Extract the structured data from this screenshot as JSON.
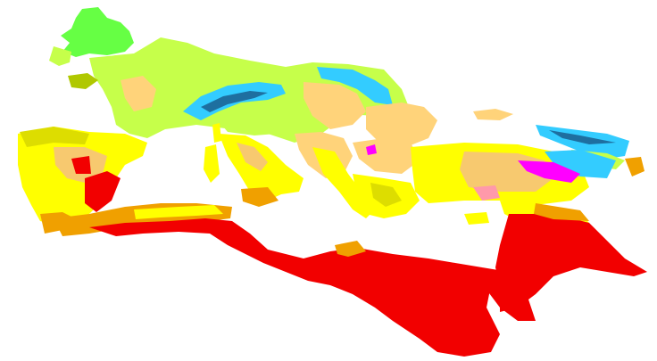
{
  "map": {
    "palette": {
      "hot_desert": "#f20000",
      "hot_semi_arid": "#f0a000",
      "mediterranean_hot": "#ffff00",
      "mediterranean_warm": "#dddd00",
      "cold_semi_arid": "#f7c96f",
      "humid_subtropical": "#ffd37a",
      "oceanic": "#c6ff4a",
      "maritime_west_coast": "#66ff44",
      "subpolar_oceanic": "#b0c800",
      "humid_continental": "#33ccff",
      "subarctic": "#0aa0a0",
      "highland": "#1e6fa0",
      "dry_summer_continental": "#ff00ff",
      "hot_steppe_pink": "#ff99aa",
      "warm_semi_arid_light": "#ffcf80",
      "background": "#ffffff"
    }
  }
}
